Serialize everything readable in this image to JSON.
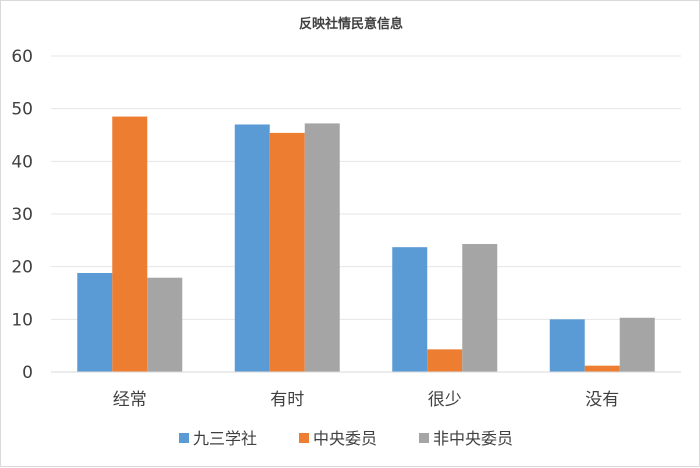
{
  "chart_data": {
    "type": "bar",
    "title": "反映社情民意信息",
    "categories": [
      "经常",
      "有时",
      "很少",
      "没有"
    ],
    "series": [
      {
        "name": "九三学社",
        "values": [
          18.8,
          47.0,
          23.7,
          10.0
        ],
        "color": "#5b9bd5"
      },
      {
        "name": "中央委员",
        "values": [
          48.5,
          45.4,
          4.3,
          1.2
        ],
        "color": "#ed7d31"
      },
      {
        "name": "非中央委员",
        "values": [
          17.9,
          47.2,
          24.3,
          10.3
        ],
        "color": "#a5a5a5"
      }
    ],
    "yticks": [
      0,
      10,
      20,
      30,
      40,
      50,
      60
    ],
    "ylim": [
      0,
      60
    ],
    "grid": true,
    "legend_position": "bottom"
  }
}
